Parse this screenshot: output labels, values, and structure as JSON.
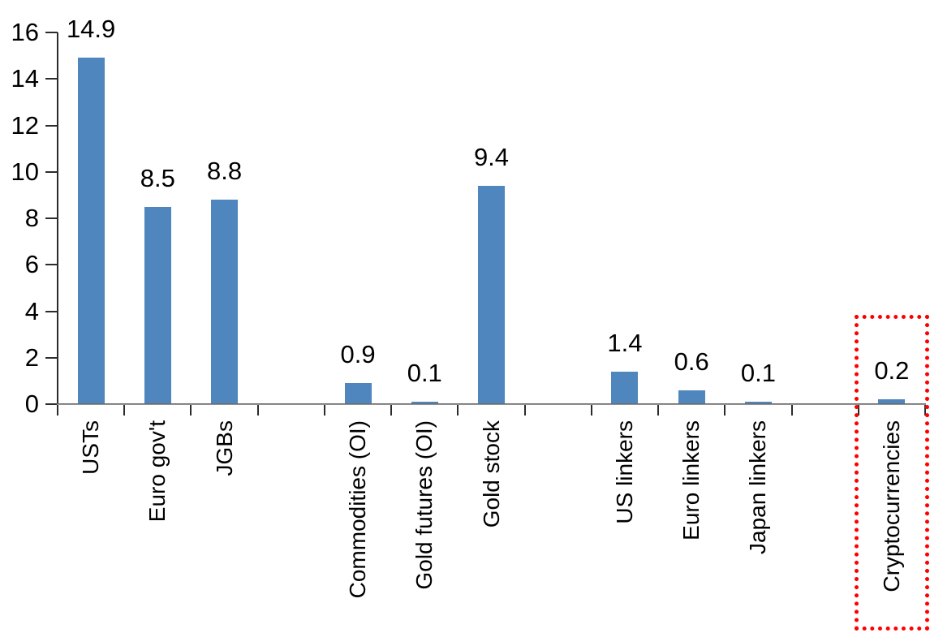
{
  "chart_data": {
    "type": "bar",
    "title": "",
    "xlabel": "",
    "ylabel": "",
    "categories": [
      "USTs",
      "Euro gov't",
      "JGBs",
      "Commodities (OI)",
      "Gold futures (OI)",
      "Gold stock",
      "US linkers",
      "Euro linkers",
      "Japan linkers",
      "Cryptocurrencies"
    ],
    "values": [
      14.9,
      8.5,
      8.8,
      0.9,
      0.1,
      9.4,
      1.4,
      0.6,
      0.1,
      0.2
    ],
    "value_labels": [
      "14.9",
      "8.5",
      "8.8",
      "0.9",
      "0.1",
      "9.4",
      "1.4",
      "0.6",
      "0.1",
      "0.2"
    ],
    "ylim": [
      0,
      16
    ],
    "ytick_step": 2,
    "ytick_labels": [
      "0",
      "2",
      "4",
      "6",
      "8",
      "10",
      "12",
      "14",
      "16"
    ],
    "grid": false,
    "legend": "none",
    "bar_color": "#4E86BD",
    "axis_tick_color": "#2B2B2B",
    "x_axis_line_color": "#808080",
    "text_color": "#000000",
    "group_breaks_after": [
      2,
      5,
      8
    ],
    "highlight": {
      "category": "Cryptocurrencies",
      "box_color": "#FF0000",
      "box_style": "dotted"
    }
  }
}
